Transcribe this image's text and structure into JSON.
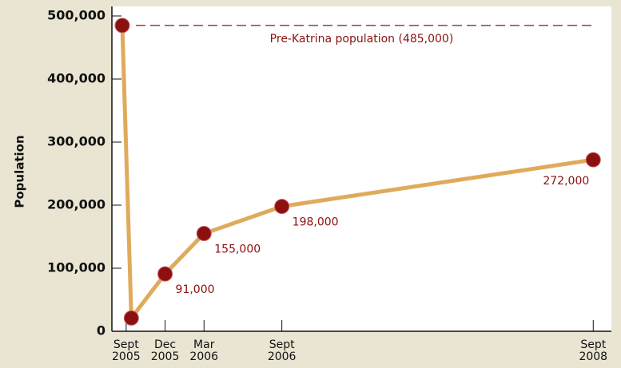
{
  "chart_data": {
    "type": "line",
    "y_label": "Population",
    "x": [
      -0.3,
      0.4,
      3,
      6,
      12,
      36
    ],
    "series": [
      {
        "name": "Population",
        "color": "#e0aa5c",
        "marker_color": "#8c1010",
        "values": [
          485000,
          21000,
          91000,
          155000,
          198000,
          272000
        ],
        "value_labels": [
          null,
          null,
          "91,000",
          "155,000",
          "198,000",
          "272,000"
        ]
      }
    ],
    "xlim": [
      -1.1,
      37.4
    ],
    "xticks": [
      {
        "value": 0,
        "label": "Sept 2005"
      },
      {
        "value": 3,
        "label": "Dec 2005"
      },
      {
        "value": 6,
        "label": "Mar 2006"
      },
      {
        "value": 12,
        "label": "Sept 2006"
      },
      {
        "value": 36,
        "label": "Sept 2008"
      }
    ],
    "ylim": [
      0,
      500000
    ],
    "yticks": [
      0,
      {
        "value": 100000,
        "label": "100,000"
      },
      {
        "value": 200000,
        "label": "200,000"
      },
      {
        "value": 300000,
        "label": "300,000"
      },
      {
        "value": 400000,
        "label": "400,000"
      },
      {
        "value": 500000,
        "label": "500,000"
      }
    ],
    "reference_line": {
      "value": 485000,
      "label": "Pre-Katrina population (485,000)",
      "color": "#8c1010"
    }
  }
}
